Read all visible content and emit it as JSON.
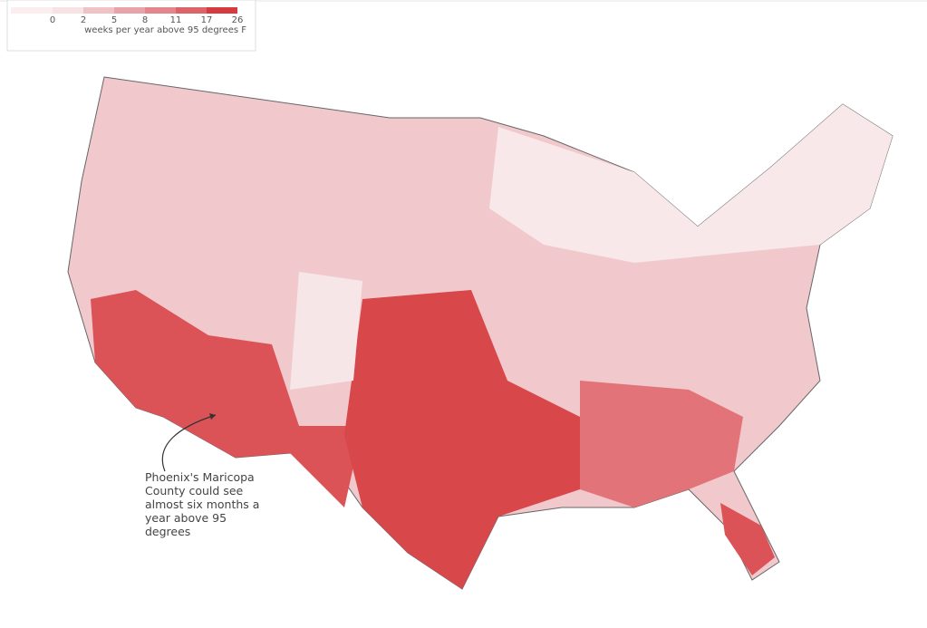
{
  "legend": {
    "ticks": [
      0,
      2,
      5,
      8,
      11,
      17,
      26
    ],
    "colors": [
      "#f7e3e4",
      "#efc3c6",
      "#e9a3a8",
      "#e3858b",
      "#dc6469",
      "#d63c3f"
    ],
    "label": "weeks per year above 95 degrees F"
  },
  "annotation": {
    "lines": [
      "Phoenix's Maricopa",
      "County could see",
      "almost six months a",
      "year above 95",
      "degrees"
    ]
  }
}
